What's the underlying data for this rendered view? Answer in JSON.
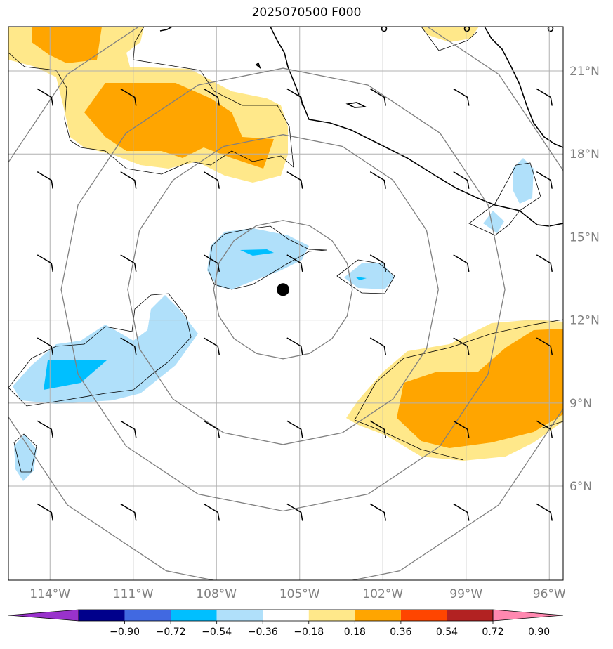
{
  "title": "2025070500 F000",
  "map": {
    "lon_range": [
      -115.5,
      -95.5
    ],
    "lat_range": [
      2.6,
      22.6
    ],
    "lon_ticks": [
      {
        "value": -114,
        "label": "114°W"
      },
      {
        "value": -111,
        "label": "111°W"
      },
      {
        "value": -108,
        "label": "108°W"
      },
      {
        "value": -105,
        "label": "105°W"
      },
      {
        "value": -102,
        "label": "102°W"
      },
      {
        "value": -99,
        "label": "99°W"
      },
      {
        "value": -96,
        "label": "96°W"
      }
    ],
    "lat_ticks": [
      {
        "value": 21,
        "label": "21°N"
      },
      {
        "value": 18,
        "label": "18°N"
      },
      {
        "value": 15,
        "label": "15°N"
      },
      {
        "value": 12,
        "label": "12°N"
      },
      {
        "value": 9,
        "label": "9°N"
      },
      {
        "value": 6,
        "label": "6°N"
      }
    ],
    "storm_center": {
      "lon": -105.6,
      "lat": 13.1
    },
    "range_rings_deg": [
      2.5,
      5.6,
      8.0,
      11.0
    ],
    "gridlines": true
  },
  "colorbar": {
    "ticks": [
      "−0.90",
      "−0.72",
      "−0.54",
      "−0.36",
      "−0.18",
      "0.18",
      "0.36",
      "0.54",
      "0.72",
      "0.90"
    ],
    "colors": [
      "#9932cc",
      "#00008b",
      "#4169e1",
      "#00bfff",
      "#b0e0fa",
      "#ffffff",
      "#ffe88a",
      "#ffa500",
      "#ff4500",
      "#b22222",
      "#ff88b0"
    ]
  },
  "colors": {
    "light_yellow": "#ffe88a",
    "orange": "#ffa500",
    "light_blue": "#b0e0fa",
    "deep_sky_blue": "#00bfff",
    "grid": "#b0b0b0",
    "ring": "#808080",
    "tick_label": "#808080"
  }
}
